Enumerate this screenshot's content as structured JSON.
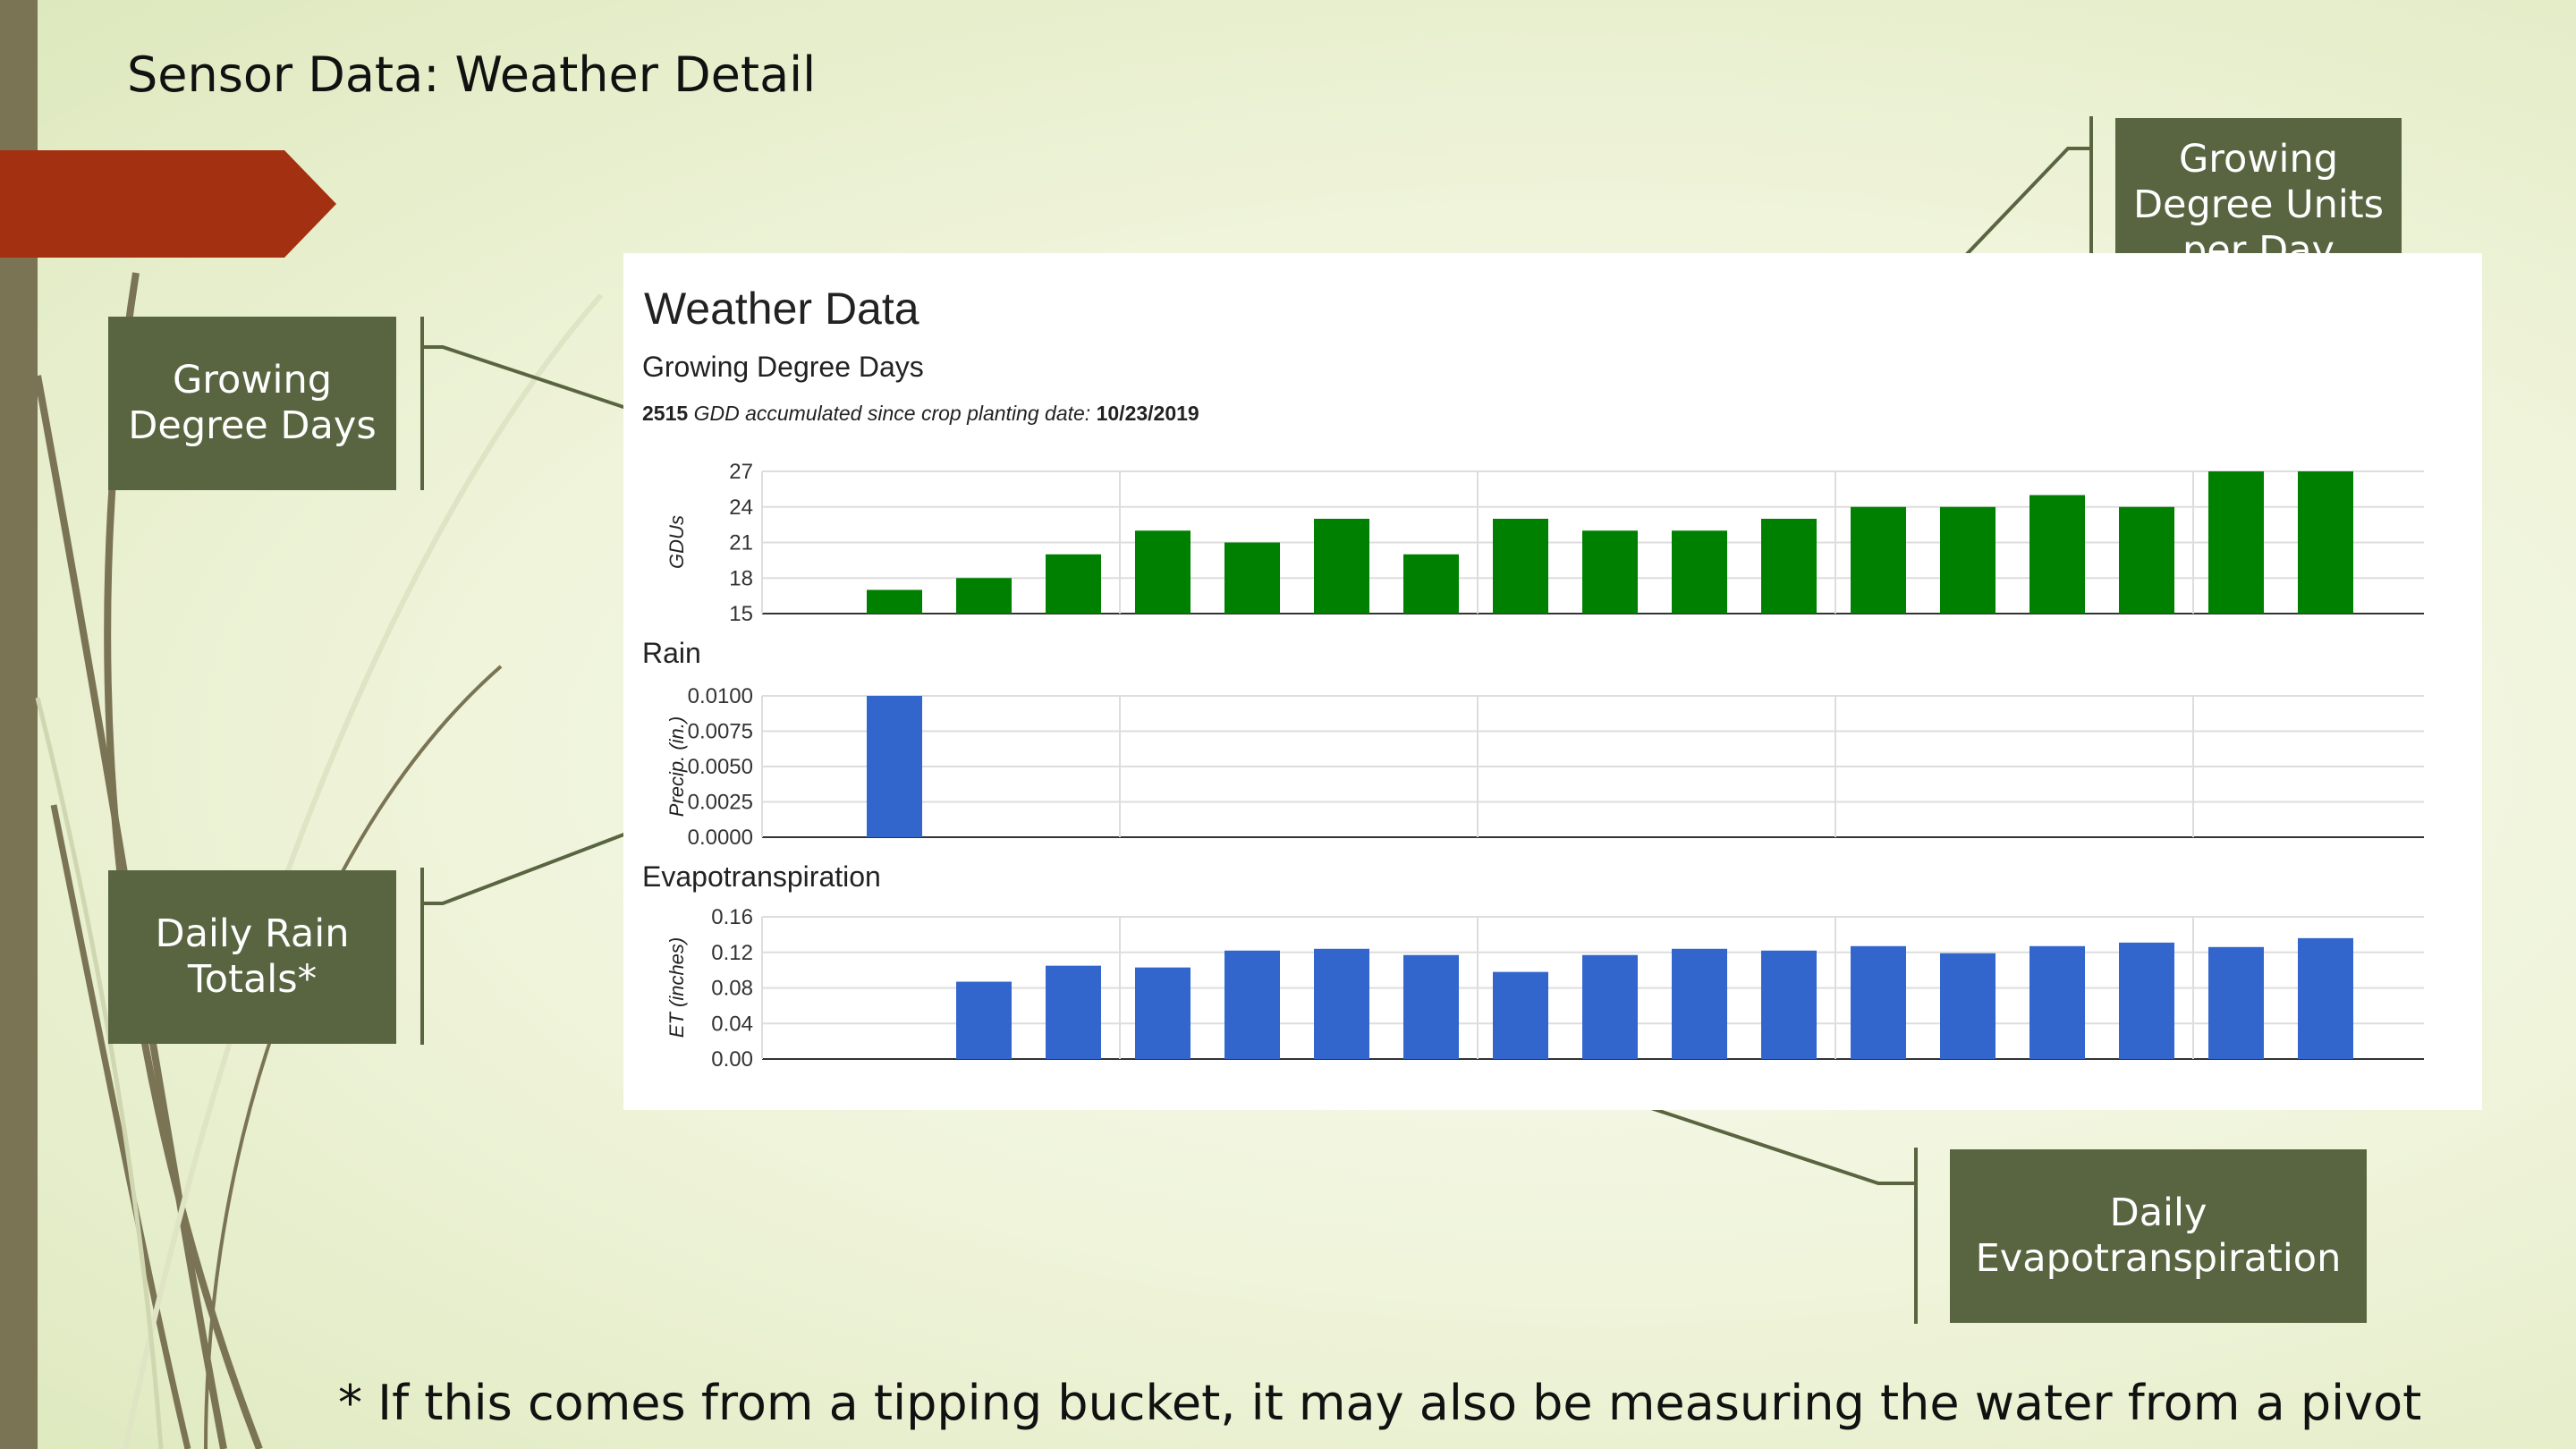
{
  "slide": {
    "title": "Sensor Data: Weather Detail",
    "footnote": "* If this comes from a tipping bucket, it may also be measuring the water from a pivot"
  },
  "callouts": {
    "gdd_days": "Growing Degree Days",
    "gdu_per_day": "Growing Degree Units per Day",
    "rain": "Daily Rain Totals*",
    "et": "Daily Evapotranspiration"
  },
  "panel": {
    "title": "Weather Data",
    "gdd_subtitle": "Growing Degree Days",
    "gdd_value": "2515",
    "gdd_text": "GDD accumulated since crop planting date:",
    "planting_date": "10/23/2019",
    "rain_subtitle": "Rain",
    "et_subtitle": "Evapotranspiration"
  },
  "colors": {
    "accent_arrow": "#a33010",
    "callout_bg": "#586540",
    "gdu_bar": "#008000",
    "blue_bar": "#3366cc"
  },
  "chart_data": [
    {
      "type": "bar",
      "ylabel": "GDUs",
      "ylim": [
        15,
        27
      ],
      "yticks": [
        "15",
        "18",
        "21",
        "24",
        "27"
      ],
      "values": [
        null,
        17,
        18,
        20,
        22,
        21,
        23,
        20,
        23,
        22,
        22,
        23,
        24,
        24,
        25,
        24,
        27,
        27
      ],
      "grid": true
    },
    {
      "type": "bar",
      "ylabel": "Precip. (in.)",
      "ylim": [
        0,
        0.01
      ],
      "yticks": [
        "0.0000",
        "0.0025",
        "0.0050",
        "0.0075",
        "0.0100"
      ],
      "values": [
        null,
        0.01,
        0,
        0,
        0,
        0,
        0,
        0,
        0,
        0,
        0,
        0,
        0,
        0,
        0,
        0,
        0,
        0
      ],
      "grid": true
    },
    {
      "type": "bar",
      "ylabel": "ET (inches)",
      "ylim": [
        0,
        0.16
      ],
      "yticks": [
        "0.00",
        "0.04",
        "0.08",
        "0.12",
        "0.16"
      ],
      "values": [
        null,
        null,
        0.087,
        0.105,
        0.103,
        0.122,
        0.124,
        0.117,
        0.098,
        0.117,
        0.124,
        0.122,
        0.127,
        0.119,
        0.127,
        0.131,
        0.126,
        0.136
      ],
      "grid": true
    }
  ]
}
